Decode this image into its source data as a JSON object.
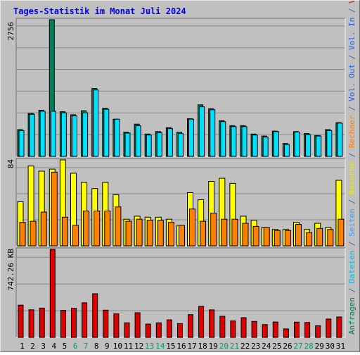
{
  "chart_data": {
    "type": "bar",
    "title": "Tages-Statistik im Monat Juli 2024",
    "categories": [
      "1",
      "2",
      "3",
      "4",
      "5",
      "6",
      "7",
      "8",
      "9",
      "10",
      "11",
      "12",
      "13",
      "14",
      "15",
      "16",
      "17",
      "18",
      "19",
      "20",
      "21",
      "22",
      "23",
      "24",
      "25",
      "26",
      "27",
      "28",
      "29",
      "30",
      "31"
    ],
    "weekend_days": [
      "6",
      "7",
      "13",
      "14",
      "20",
      "21",
      "27",
      "28"
    ],
    "panels": {
      "top": {
        "ymax": 2756,
        "ymax_label": "2756",
        "series": [
          {
            "name": "Anfragen",
            "color": "#00805c",
            "values": [
              540,
              870,
              930,
              2756,
              900,
              840,
              920,
              1370,
              970,
              750,
              490,
              650,
              450,
              500,
              580,
              490,
              760,
              1040,
              960,
              720,
              620,
              620,
              450,
              410,
              510,
              260,
              500,
              460,
              420,
              540,
              680
            ]
          },
          {
            "name": "Dateien",
            "color": "#00e0ff",
            "values": [
              520,
              850,
              910,
              910,
              880,
              820,
              880,
              1340,
              950,
              750,
              470,
              620,
              430,
              480,
              560,
              460,
              750,
              1000,
              940,
              700,
              600,
              600,
              430,
              390,
              500,
              240,
              490,
              440,
              410,
              520,
              670
            ]
          }
        ]
      },
      "middle": {
        "ymax": 84,
        "ymax_label": "84",
        "series": [
          {
            "name": "Seiten",
            "color": "#2090e0",
            "values": []
          },
          {
            "name": "Besuche",
            "color": "#ffff00",
            "values": [
              43,
              78,
              73,
              75,
              84,
              71,
              62,
              56,
              62,
              50,
              26,
              29,
              28,
              28,
              26,
              20,
              52,
              45,
              63,
              66,
              61,
              29,
              25,
              18,
              16,
              16,
              23,
              16,
              22,
              18,
              64
            ]
          },
          {
            "name": "Rechner",
            "color": "#ff8000",
            "values": [
              23,
              24,
              33,
              72,
              28,
              20,
              34,
              34,
              34,
              38,
              24,
              26,
              25,
              25,
              23,
              20,
              36,
              24,
              32,
              26,
              26,
              22,
              19,
              18,
              15,
              15,
              21,
              13,
              17,
              16,
              26
            ]
          }
        ]
      },
      "bottom": {
        "ymax": 742.26,
        "ymax_label": "742.26 KB",
        "series": [
          {
            "name": "Vol. Out",
            "color": "#2060ff",
            "values": []
          },
          {
            "name": "Vol. In",
            "color": "#2060ff",
            "values": []
          },
          {
            "name": "Volumen",
            "color": "#e00000",
            "values": [
              272,
              233,
              247,
              742,
              228,
              245,
              292,
              368,
              230,
              199,
              123,
              208,
              112,
              123,
              148,
              116,
              192,
              262,
              232,
              178,
              139,
              166,
              135,
              108,
              130,
              72,
              129,
              126,
              98,
              155,
              172
            ]
          }
        ]
      }
    },
    "right_legend": [
      {
        "text": "Anfragen",
        "color": "#008060"
      },
      {
        "text": " / ",
        "color": "#5060a0"
      },
      {
        "text": "Dateien",
        "color": "#00b8e0"
      },
      {
        "text": " / ",
        "color": "#5060a0"
      },
      {
        "text": "Seiten",
        "color": "#3aa0ff"
      },
      {
        "text": " / ",
        "color": "#5060a0"
      },
      {
        "text": "Besuche",
        "color": "#e8e800"
      },
      {
        "text": " / ",
        "color": "#5060a0"
      },
      {
        "text": "Rechner",
        "color": "#ff8000"
      },
      {
        "text": " / ",
        "color": "#5060a0"
      },
      {
        "text": "Vol. Out",
        "color": "#2060ff"
      },
      {
        "text": " / ",
        "color": "#5060a0"
      },
      {
        "text": "Vol. In",
        "color": "#2060ff"
      },
      {
        "text": " / ",
        "color": "#5060a0"
      },
      {
        "text": "Volumen",
        "color": "#e00000"
      }
    ],
    "colors": {
      "background": "#c0c0c0",
      "title": "#0000ff",
      "grid": "#8a8a8a",
      "weekday_label": "#000000",
      "weekend_label": "#00a070"
    },
    "grid": true
  }
}
